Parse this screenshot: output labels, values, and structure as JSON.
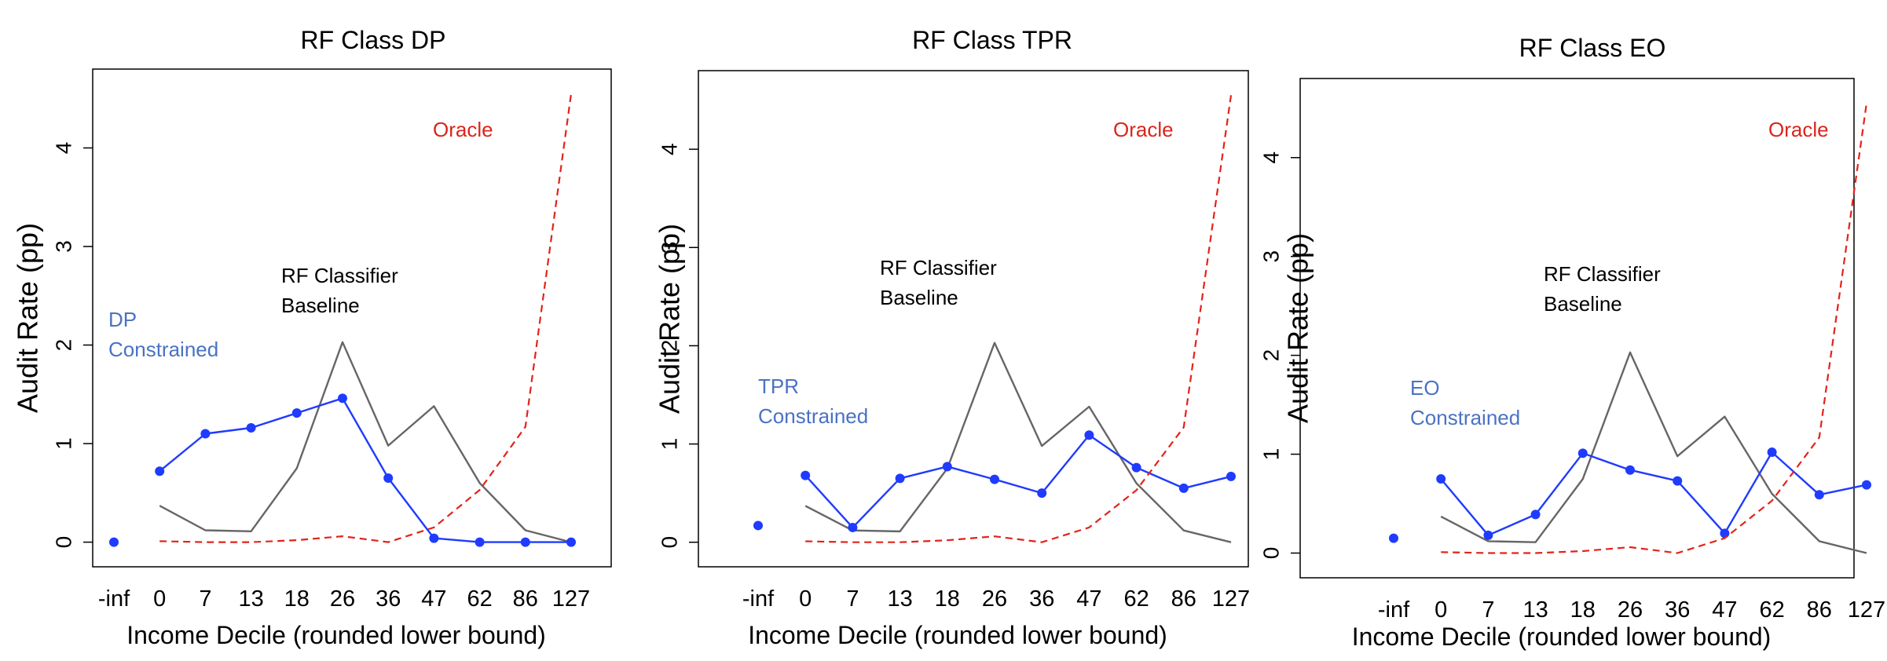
{
  "chart_data": [
    {
      "type": "line",
      "title": "RF Class DP",
      "xlabel": "Income Decile (rounded lower bound)",
      "ylabel": "Audit Rate (pp)",
      "x_tick_labels": [
        "-inf",
        "0",
        "7",
        "13",
        "18",
        "26",
        "36",
        "47",
        "62",
        "86",
        "127"
      ],
      "ylim": [
        -0.25,
        4.8
      ],
      "yticks": [
        0,
        1,
        2,
        3,
        4
      ],
      "series": [
        {
          "name": "RF Classifier Baseline",
          "label_lines": [
            "RF Classifier",
            "Baseline"
          ],
          "color": "#666666",
          "style": "solid",
          "markers": false,
          "x": [
            1,
            2,
            3,
            4,
            5,
            6,
            7,
            8,
            9,
            10
          ],
          "values": [
            0.37,
            0.12,
            0.11,
            0.75,
            2.03,
            0.98,
            1.38,
            0.6,
            0.12,
            0.0
          ]
        },
        {
          "name": "DP Constrained",
          "label_lines": [
            "DP",
            "Constrained"
          ],
          "color": "#1f3bff",
          "label_color": "#4a72c4",
          "style": "solid",
          "markers": true,
          "x": [
            0,
            1,
            2,
            3,
            4,
            5,
            6,
            7,
            8,
            9,
            10
          ],
          "values": [
            0.0,
            0.72,
            1.1,
            1.16,
            1.31,
            1.46,
            0.65,
            0.04,
            0.0,
            0.0,
            0.0
          ],
          "line_breaks_after": [
            0
          ]
        },
        {
          "name": "Oracle",
          "label_lines": [
            "Oracle"
          ],
          "color": "#e2231a",
          "style": "dashed",
          "markers": false,
          "x": [
            1,
            2,
            3,
            4,
            5,
            6,
            7,
            8,
            9,
            10
          ],
          "values": [
            0.01,
            0.0,
            0.0,
            0.02,
            0.06,
            0.0,
            0.15,
            0.53,
            1.17,
            4.55
          ]
        }
      ]
    },
    {
      "type": "line",
      "title": "RF Class TPR",
      "xlabel": "Income Decile (rounded lower bound)",
      "ylabel": "Audit Rate (pp)",
      "x_tick_labels": [
        "-inf",
        "0",
        "7",
        "13",
        "18",
        "26",
        "36",
        "47",
        "62",
        "86",
        "127"
      ],
      "ylim": [
        -0.25,
        4.8
      ],
      "yticks": [
        0,
        1,
        2,
        3,
        4
      ],
      "series": [
        {
          "name": "RF Classifier Baseline",
          "label_lines": [
            "RF Classifier",
            "Baseline"
          ],
          "color": "#666666",
          "style": "solid",
          "markers": false,
          "x": [
            1,
            2,
            3,
            4,
            5,
            6,
            7,
            8,
            9,
            10
          ],
          "values": [
            0.37,
            0.12,
            0.11,
            0.75,
            2.03,
            0.98,
            1.38,
            0.6,
            0.12,
            0.0
          ]
        },
        {
          "name": "TPR Constrained",
          "label_lines": [
            "TPR",
            "Constrained"
          ],
          "color": "#1f3bff",
          "label_color": "#4a72c4",
          "style": "solid",
          "markers": true,
          "x": [
            0,
            1,
            2,
            3,
            4,
            5,
            6,
            7,
            8,
            9,
            10
          ],
          "values": [
            0.17,
            0.68,
            0.15,
            0.65,
            0.77,
            0.64,
            0.5,
            1.09,
            0.76,
            0.55,
            0.67
          ],
          "line_breaks_after": [
            0
          ]
        },
        {
          "name": "Oracle",
          "label_lines": [
            "Oracle"
          ],
          "color": "#e2231a",
          "style": "dashed",
          "markers": false,
          "x": [
            1,
            2,
            3,
            4,
            5,
            6,
            7,
            8,
            9,
            10
          ],
          "values": [
            0.01,
            0.0,
            0.0,
            0.02,
            0.06,
            0.0,
            0.15,
            0.53,
            1.17,
            4.55
          ]
        }
      ]
    },
    {
      "type": "line",
      "title": "RF Class EO",
      "xlabel": "Income Decile (rounded lower bound)",
      "ylabel": "Audit Rate (pp)",
      "x_tick_labels": [
        "-inf",
        "0",
        "7",
        "13",
        "18",
        "26",
        "36",
        "47",
        "62",
        "86",
        "127"
      ],
      "ylim": [
        -0.25,
        4.8
      ],
      "yticks": [
        0,
        1,
        2,
        3,
        4
      ],
      "series": [
        {
          "name": "RF Classifier Baseline",
          "label_lines": [
            "RF Classifier",
            "Baseline"
          ],
          "color": "#666666",
          "style": "solid",
          "markers": false,
          "x": [
            1,
            2,
            3,
            4,
            5,
            6,
            7,
            8,
            9,
            10
          ],
          "values": [
            0.37,
            0.12,
            0.11,
            0.75,
            2.03,
            0.98,
            1.38,
            0.6,
            0.12,
            0.0
          ]
        },
        {
          "name": "EO Constrained",
          "label_lines": [
            "EO",
            "Constrained"
          ],
          "color": "#1f3bff",
          "label_color": "#4a72c4",
          "style": "solid",
          "markers": true,
          "x": [
            0,
            1,
            2,
            3,
            4,
            5,
            6,
            7,
            8,
            9,
            10
          ],
          "values": [
            0.15,
            0.75,
            0.18,
            0.39,
            1.01,
            0.84,
            0.73,
            0.2,
            1.02,
            0.59,
            0.69
          ],
          "line_breaks_after": [
            0
          ]
        },
        {
          "name": "Oracle",
          "label_lines": [
            "Oracle"
          ],
          "color": "#e2231a",
          "style": "dashed",
          "markers": false,
          "x": [
            1,
            2,
            3,
            4,
            5,
            6,
            7,
            8,
            9,
            10
          ],
          "values": [
            0.01,
            0.0,
            0.0,
            0.02,
            0.06,
            0.0,
            0.15,
            0.53,
            1.17,
            4.55
          ]
        }
      ]
    }
  ]
}
